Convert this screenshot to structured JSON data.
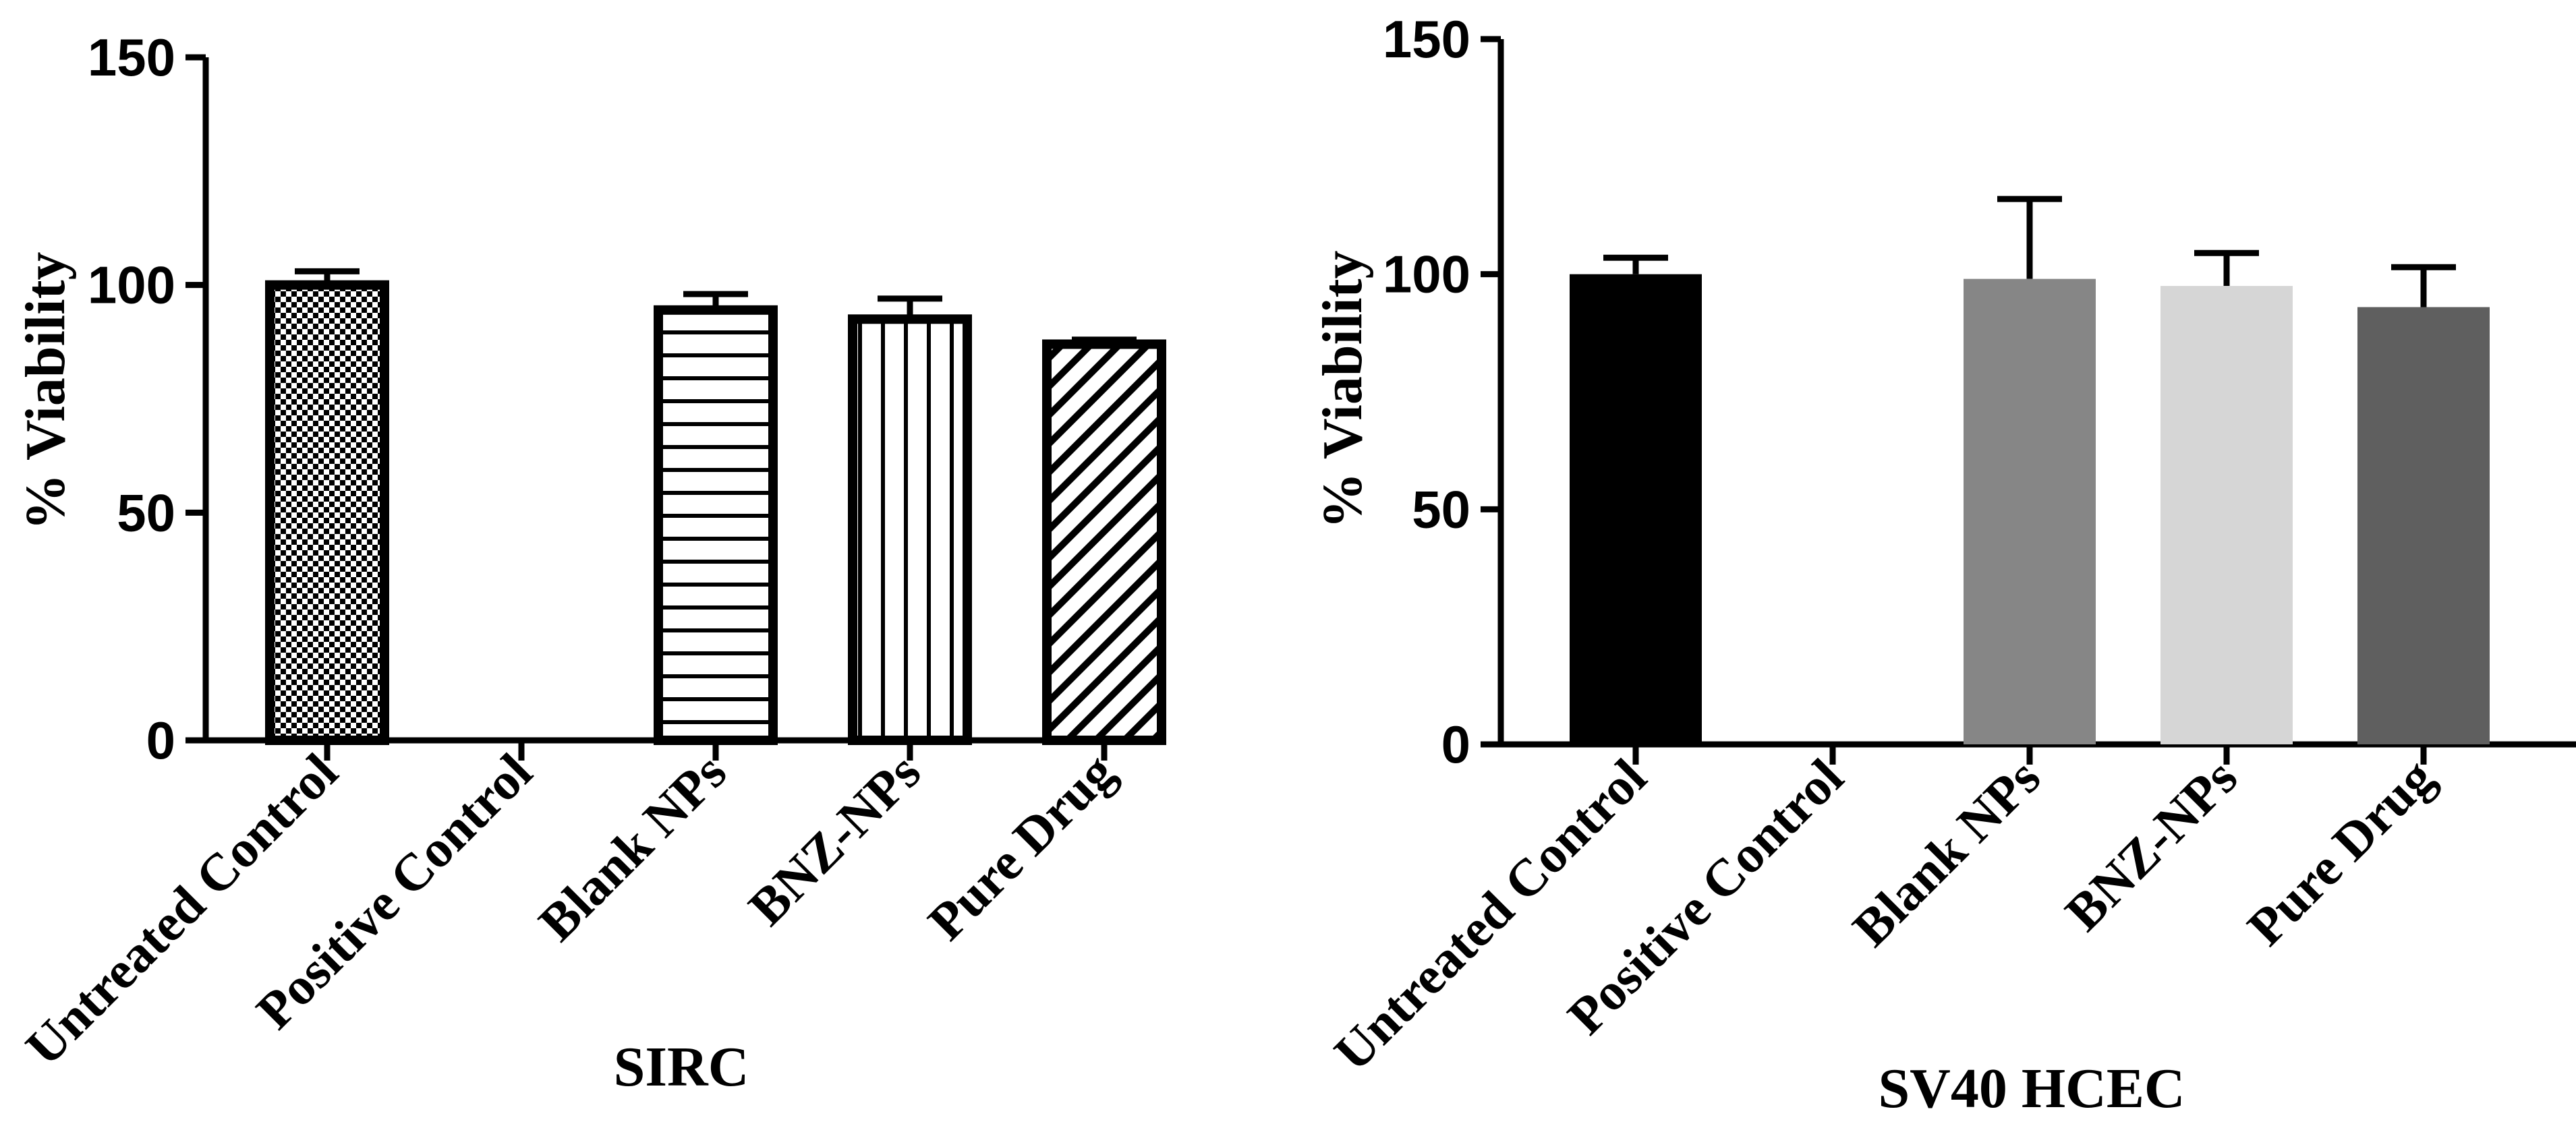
{
  "chart_data": [
    {
      "type": "bar",
      "xlabel": "SIRC",
      "ylabel": "% Viability",
      "ylim": [
        0,
        150
      ],
      "yticks": [
        "0",
        "50",
        "100",
        "150"
      ],
      "grid": false,
      "categories": [
        "Untreated Control",
        "Positive Control",
        "Blank NPs",
        "BNZ-NPs",
        "Pure Drug"
      ],
      "values": [
        100,
        0,
        94.5,
        92.5,
        87
      ],
      "errors": [
        3,
        0,
        3.5,
        4.5,
        1
      ],
      "bar_fills": [
        "checkerboard",
        "none",
        "horizontal-stripes",
        "vertical-stripes",
        "diagonal-stripes"
      ]
    },
    {
      "type": "bar",
      "xlabel": "SV40 HCEC",
      "ylabel": "% Viability",
      "ylim": [
        0,
        150
      ],
      "yticks": [
        "0",
        "50",
        "100",
        "150"
      ],
      "grid": false,
      "categories": [
        "Untreated Control",
        "Positive Control",
        "Blank NPs",
        "BNZ-NPs",
        "Pure Drug"
      ],
      "values": [
        100,
        0,
        99,
        97.5,
        93
      ],
      "errors": [
        3.5,
        0,
        17,
        7,
        8.5
      ],
      "bar_colors": [
        "#000000",
        "#ffffff",
        "#868686",
        "#d6d6d6",
        "#5f5f5f"
      ]
    }
  ]
}
